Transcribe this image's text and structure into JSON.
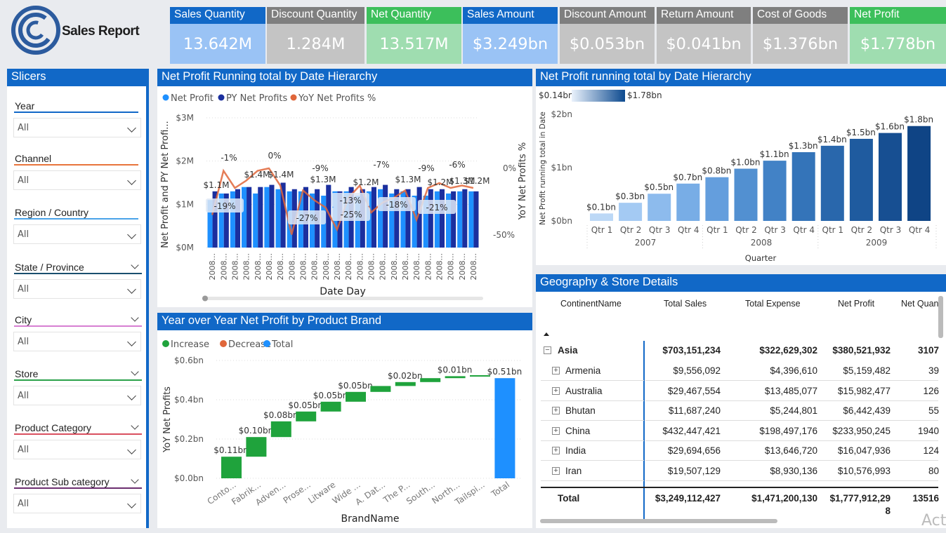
{
  "header": {
    "title": "Sales Report"
  },
  "kpis": [
    {
      "label": "Sales Quantity",
      "value": "13.642M",
      "head_color": "#1168c7",
      "body_color": "#9ac3f5"
    },
    {
      "label": "Discount Quantity",
      "value": "1.284M",
      "head_color": "#7f7f7f",
      "body_color": "#c4c4c4"
    },
    {
      "label": "Net Quantity",
      "value": "13.517M",
      "head_color": "#3cbf5b",
      "body_color": "#9fddb0"
    },
    {
      "label": "Sales Amount",
      "value": "$3.249bn",
      "head_color": "#1168c7",
      "body_color": "#9ac3f5"
    },
    {
      "label": "Discount Amount",
      "value": "$0.053bn",
      "head_color": "#7f7f7f",
      "body_color": "#c4c4c4"
    },
    {
      "label": "Return Amount",
      "value": "$0.041bn",
      "head_color": "#7f7f7f",
      "body_color": "#c4c4c4"
    },
    {
      "label": "Cost of Goods",
      "value": "$1.376bn",
      "head_color": "#7f7f7f",
      "body_color": "#c4c4c4"
    },
    {
      "label": "Net Profit",
      "value": "$1.778bn",
      "head_color": "#3cbf5b",
      "body_color": "#9fddb0"
    }
  ],
  "slicers": {
    "title": "Slicers",
    "items": [
      {
        "label": "Year",
        "value": "All",
        "color": "#1168c7"
      },
      {
        "label": "Channel",
        "value": "All",
        "color": "#e8743b"
      },
      {
        "label": "Region / Country",
        "value": "All",
        "color": "#4aa3e8"
      },
      {
        "label": "State / Province",
        "value": "All",
        "color": "#1a4f6e"
      },
      {
        "label": "City",
        "value": "All",
        "color": "#d67fd2"
      },
      {
        "label": "Store",
        "value": "All",
        "color": "#2aa14a"
      },
      {
        "label": "Product Category",
        "value": "All",
        "color": "#d9505f"
      },
      {
        "label": "Product Sub category",
        "value": "All",
        "color": "#6b2f6f"
      }
    ]
  },
  "chart1": {
    "title": "Net Profit Running total by Date Hierarchy",
    "legend": [
      "Net Profit",
      "PY Net Profits",
      "YoY Net Profits %"
    ],
    "legend_colors": [
      "#1e90ff",
      "#1b2f9e",
      "#e0663a"
    ],
    "ylabel": "Net Profit and PY Net Profi...",
    "y2label": "YoY Net Profits %",
    "xlabel": "Date Day",
    "yticks": [
      "$3M",
      "$2M",
      "$1M",
      "$0M"
    ],
    "y2ticks": [
      "0%",
      "-50%"
    ],
    "bar_labels": [
      "$1.1M",
      "$1.4M",
      "$1.4M",
      "$1.3M",
      "$1.2M",
      "$1.3M",
      "$1.2M",
      "$1.2M",
      "$1.3M"
    ],
    "pct_labels": [
      "-1%",
      "0%",
      "-9%",
      "-7%",
      "-9%",
      "-6%"
    ],
    "box_labels": [
      "-19%",
      "-27%",
      "-13%",
      "-25%",
      "-18%",
      "-21%"
    ],
    "x_tick": "2008..."
  },
  "chart2": {
    "title": "Net Profit running total by Date Hierarchy",
    "legend_min": "$0.14bn",
    "legend_max": "$1.78bn",
    "ylabel": "Net Profit running total in Date",
    "xlabel": "Quarter",
    "yticks": [
      "$2bn",
      "$1bn",
      "$0bn"
    ],
    "years": [
      "2007",
      "2008",
      "2009"
    ]
  },
  "chart3": {
    "title": "Year over Year Net Profit by Product Brand",
    "legend": [
      "Increase",
      "Decrease",
      "Total"
    ],
    "legend_colors": [
      "#1fa33c",
      "#e0663a",
      "#1e90ff"
    ],
    "ylabel": "YoY Net Profits",
    "xlabel": "BrandName",
    "yticks": [
      "$0.6bn",
      "$0.4bn",
      "$0.2bn",
      "$0.0bn"
    ]
  },
  "geo": {
    "title": "Geography & Store Details",
    "columns": [
      "ContinentName",
      "Total Sales",
      "Total Expense",
      "Net Profit",
      "Net Quan"
    ],
    "group": {
      "name": "Asia",
      "sales": "$703,151,234",
      "expense": "$322,629,302",
      "profit": "$380,521,932",
      "qty": "3107"
    },
    "rows": [
      {
        "name": "Armenia",
        "sales": "$9,556,092",
        "expense": "$4,396,610",
        "profit": "$5,159,482",
        "qty": "39"
      },
      {
        "name": "Australia",
        "sales": "$29,467,554",
        "expense": "$13,485,077",
        "profit": "$15,982,477",
        "qty": "126"
      },
      {
        "name": "Bhutan",
        "sales": "$11,687,240",
        "expense": "$5,244,801",
        "profit": "$6,442,439",
        "qty": "55"
      },
      {
        "name": "China",
        "sales": "$432,447,421",
        "expense": "$198,497,176",
        "profit": "$233,950,245",
        "qty": "1940"
      },
      {
        "name": "India",
        "sales": "$29,694,656",
        "expense": "$13,646,720",
        "profit": "$16,047,936",
        "qty": "124"
      },
      {
        "name": "Iran",
        "sales": "$19,507,129",
        "expense": "$8,930,136",
        "profit": "$10,576,993",
        "qty": "80"
      }
    ],
    "total": {
      "name": "Total",
      "sales": "$3,249,112,427",
      "expense": "$1,471,200,130",
      "profit": "$1,777,912,29",
      "profit_wrap": "8",
      "qty": "13516"
    }
  },
  "watermark": "Act",
  "chart_data": [
    {
      "type": "bar",
      "title": "Net Profit Running total by Date Hierarchy",
      "xlabel": "Date Day",
      "ylabel": "Net Profit and PY Net Profi...",
      "ylim": [
        0,
        3000000
      ],
      "categories": [
        "2008...",
        "2008...",
        "2008...",
        "2008...",
        "2008...",
        "2008...",
        "2008...",
        "2008...",
        "2008...",
        "2008...",
        "2008...",
        "2008...",
        "2008...",
        "2008...",
        "2008...",
        "2008...",
        "2008...",
        "2008...",
        "2008...",
        "2008...",
        "2008...",
        "2008...",
        "2008...",
        "2008..."
      ],
      "series": [
        {
          "name": "Net Profit",
          "values": [
            1100000,
            1250000,
            1300000,
            1400000,
            1250000,
            1400000,
            1350000,
            1300000,
            1300000,
            1250000,
            1200000,
            1300000,
            1300000,
            1200000,
            1300000,
            1350000,
            1250000,
            1300000,
            1200000,
            1200000,
            1300000,
            1250000,
            1300000,
            1300000
          ]
        },
        {
          "name": "PY Net Profits",
          "values": [
            1300000,
            1250000,
            1350000,
            1400000,
            1400000,
            1450000,
            1500000,
            1350000,
            1400000,
            1350000,
            1450000,
            1300000,
            1400000,
            1350000,
            1400000,
            1450000,
            1350000,
            1350000,
            1400000,
            1350000,
            1350000,
            1300000,
            1350000,
            1300000
          ]
        },
        {
          "name": "YoY Net Profits %",
          "values": [
            -19,
            -1,
            -8,
            -5,
            -1,
            0,
            -7,
            -27,
            -9,
            -13,
            -16,
            -25,
            -12,
            -7,
            -18,
            -14,
            -12,
            -9,
            -21,
            -8,
            -6,
            -8,
            -7,
            -8
          ]
        }
      ]
    },
    {
      "type": "bar",
      "title": "Net Profit running total by Date Hierarchy",
      "xlabel": "Quarter",
      "ylabel": "Net Profit running total in Date",
      "ylim": [
        0,
        2000000000
      ],
      "categories": [
        "Qtr 1",
        "Qtr 2",
        "Qtr 3",
        "Qtr 4",
        "Qtr 1",
        "Qtr 2",
        "Qtr 3",
        "Qtr 4",
        "Qtr 1",
        "Qtr 2",
        "Qtr 3",
        "Qtr 4"
      ],
      "groups": [
        "2007",
        "2008",
        "2009"
      ],
      "values": [
        140000000,
        340000000,
        510000000,
        700000000,
        820000000,
        980000000,
        1130000000,
        1290000000,
        1410000000,
        1540000000,
        1650000000,
        1780000000
      ],
      "labels": [
        "$0.1bn",
        "$0.3bn",
        "$0.5bn",
        "$0.7bn",
        "$0.8bn",
        "$1.0bn",
        "$1.1bn",
        "$1.3bn",
        "$1.4bn",
        "$1.5bn",
        "$1.6bn",
        "$1.8bn"
      ]
    },
    {
      "type": "bar",
      "title": "Year over Year Net Profit by Product Brand",
      "xlabel": "BrandName",
      "ylabel": "YoY Net Profits",
      "ylim": [
        0,
        0.6
      ],
      "categories": [
        "Conto...",
        "Fabrik...",
        "Adven...",
        "Prose...",
        "Litware",
        "Wide ...",
        "A. Dat...",
        "The P...",
        "South...",
        "North...",
        "Tailspi...",
        "Total"
      ],
      "values": [
        0.11,
        0.1,
        0.08,
        0.05,
        0.05,
        0.05,
        0.03,
        0.02,
        0.02,
        0.01,
        0.005,
        0.51
      ],
      "labels": [
        "$0.11bn",
        "$0.10bn",
        "$0.08bn",
        "$0.05bn",
        "$0.05bn",
        "$0.05bn",
        "",
        "$0.02bn",
        "",
        "$0.01bn",
        "",
        "$0.51bn"
      ]
    }
  ]
}
